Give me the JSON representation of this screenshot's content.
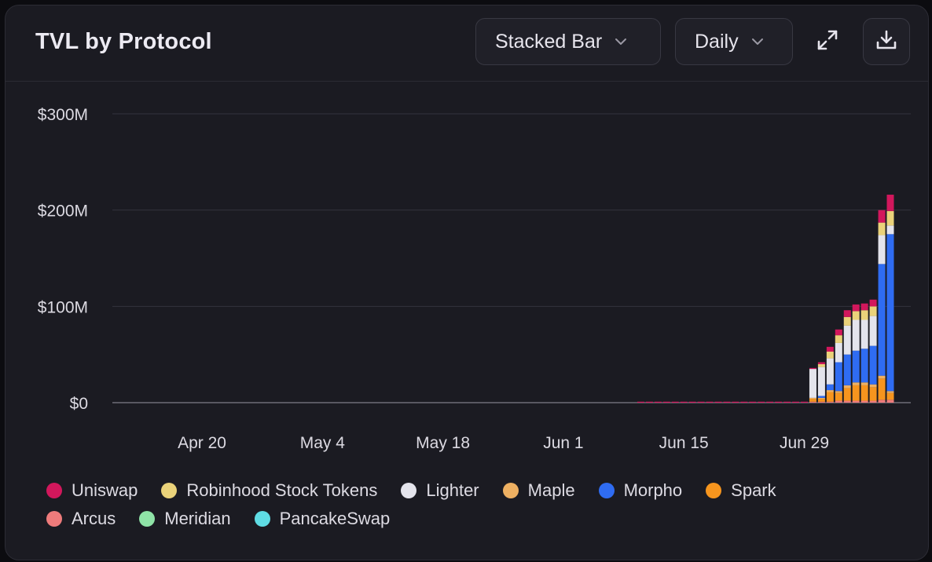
{
  "header": {
    "title": "TVL by Protocol",
    "chart_type_label": "Stacked Bar",
    "interval_label": "Daily",
    "expand_icon": "expand-icon",
    "download_icon": "download-icon"
  },
  "colors": {
    "Uniswap": "#d2175c",
    "Robinhood Stock Tokens": "#ead27a",
    "Lighter": "#e4e4ec",
    "Maple": "#eeb062",
    "Morpho": "#2f6cf2",
    "Spark": "#f6951e",
    "Arcus": "#ee7b7b",
    "Meridian": "#8fe3a7",
    "PancakeSwap": "#5fdce4"
  },
  "chart_data": {
    "type": "bar",
    "stacked": true,
    "interval": "Daily",
    "title": "TVL by Protocol",
    "xlabel": "",
    "ylabel": "",
    "ylim": [
      0,
      300
    ],
    "y_unit": "$M",
    "y_ticks": [
      0,
      100,
      200,
      300
    ],
    "y_tick_labels": [
      "$0",
      "$100M",
      "$200M",
      "$300M"
    ],
    "x_ticks": [
      "2025-04-20",
      "2025-05-04",
      "2025-05-18",
      "2025-06-01",
      "2025-06-15",
      "2025-06-29"
    ],
    "x_tick_labels": [
      "Apr 20",
      "May 4",
      "May 18",
      "Jun 1",
      "Jun 15",
      "Jun 29"
    ],
    "x_range": [
      "2025-04-10",
      "2025-07-10"
    ],
    "grid": true,
    "legend_position": "bottom",
    "series_order": [
      "Arcus",
      "Spark",
      "Maple",
      "Morpho",
      "Lighter",
      "Robinhood Stock Tokens",
      "Uniswap",
      "Meridian",
      "PancakeSwap"
    ],
    "dates": [
      "2025-06-10",
      "2025-06-11",
      "2025-06-12",
      "2025-06-13",
      "2025-06-14",
      "2025-06-15",
      "2025-06-16",
      "2025-06-17",
      "2025-06-18",
      "2025-06-19",
      "2025-06-20",
      "2025-06-21",
      "2025-06-22",
      "2025-06-23",
      "2025-06-24",
      "2025-06-25",
      "2025-06-26",
      "2025-06-27",
      "2025-06-28",
      "2025-06-29",
      "2025-06-30",
      "2025-07-01",
      "2025-07-02",
      "2025-07-03",
      "2025-07-04",
      "2025-07-05",
      "2025-07-06",
      "2025-07-07",
      "2025-07-08",
      "2025-07-09"
    ],
    "series": [
      {
        "name": "Arcus",
        "values": [
          0,
          0,
          0,
          0,
          0,
          0,
          0,
          0,
          0,
          0,
          0,
          0,
          0,
          0,
          0,
          0,
          0,
          0,
          0,
          0,
          1,
          1,
          1,
          2,
          2,
          2,
          2,
          2,
          3,
          3
        ]
      },
      {
        "name": "Spark",
        "values": [
          0,
          0,
          0,
          0,
          0,
          0,
          0,
          0,
          0,
          0,
          0,
          0,
          0,
          0,
          0,
          0,
          0,
          0,
          0,
          0,
          3,
          3,
          10,
          8,
          13,
          16,
          16,
          14,
          22,
          7
        ]
      },
      {
        "name": "Maple",
        "values": [
          0,
          0,
          0,
          0,
          0,
          0,
          0,
          0,
          0,
          0,
          0,
          0,
          0,
          0,
          0,
          0,
          0,
          0,
          0,
          0,
          1,
          1,
          2,
          2,
          3,
          3,
          3,
          3,
          3,
          2
        ]
      },
      {
        "name": "Morpho",
        "values": [
          0,
          0,
          0,
          0,
          0,
          0,
          0,
          0,
          0,
          0,
          0,
          0,
          0,
          0,
          0,
          0,
          0,
          0,
          0,
          0,
          0,
          2,
          6,
          30,
          32,
          33,
          35,
          40,
          116,
          163
        ]
      },
      {
        "name": "Lighter",
        "values": [
          0,
          0,
          0,
          0,
          0,
          0,
          0,
          0,
          0,
          0,
          0,
          0,
          0,
          0,
          0,
          0,
          0,
          0,
          0,
          0,
          30,
          30,
          27,
          20,
          30,
          32,
          30,
          31,
          30,
          9
        ]
      },
      {
        "name": "Robinhood Stock Tokens",
        "values": [
          0,
          0,
          0,
          0,
          0,
          0,
          0,
          0,
          0,
          0,
          0,
          0,
          0,
          0,
          0,
          0,
          0,
          0,
          0,
          0,
          0,
          3,
          7,
          8,
          9,
          9,
          10,
          10,
          13,
          15
        ]
      },
      {
        "name": "Uniswap",
        "values": [
          1,
          1,
          1,
          1,
          1,
          1,
          1,
          1,
          1,
          1,
          1,
          1,
          1,
          1,
          1,
          1,
          1,
          1,
          1,
          1,
          1,
          2,
          5,
          6,
          7,
          7,
          7,
          7,
          13,
          17
        ]
      },
      {
        "name": "Meridian",
        "values": [
          0,
          0,
          0,
          0,
          0,
          0,
          0,
          0,
          0,
          0,
          0,
          0,
          0,
          0,
          0,
          0,
          0,
          0,
          0,
          0,
          0,
          0,
          0,
          0,
          0,
          0,
          0,
          0,
          0,
          0
        ]
      },
      {
        "name": "PancakeSwap",
        "values": [
          0,
          0,
          0,
          0,
          0,
          0,
          0,
          0,
          0,
          0,
          0,
          0,
          0,
          0,
          0,
          0,
          0,
          0,
          0,
          0,
          0,
          0,
          0,
          0,
          0,
          0,
          0,
          0,
          0,
          0
        ]
      }
    ]
  },
  "legend": {
    "rows": [
      [
        "Uniswap",
        "Robinhood Stock Tokens",
        "Lighter",
        "Maple",
        "Morpho",
        "Spark"
      ],
      [
        "Arcus",
        "Meridian",
        "PancakeSwap"
      ]
    ]
  }
}
